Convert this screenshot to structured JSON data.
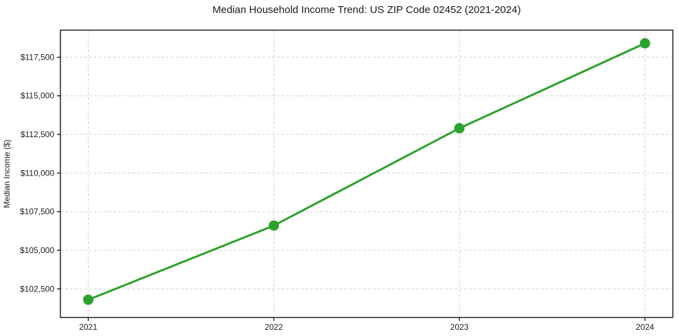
{
  "figure": {
    "background": "#ffffff"
  },
  "chart_data": {
    "type": "line",
    "title": "Median Household Income Trend: US ZIP Code 02452 (2021-2024)",
    "xlabel": "",
    "ylabel": "Median Income ($)",
    "categories": [
      "2021",
      "2022",
      "2023",
      "2024"
    ],
    "series": [
      {
        "values": [
          101800,
          106600,
          112900,
          118400
        ],
        "color": "#2ca02c",
        "marker": "circle",
        "line_width": 3,
        "marker_radius": 7.5
      }
    ],
    "yticks": [
      {
        "value": 102500,
        "label": "$102,500"
      },
      {
        "value": 105000,
        "label": "$105,000"
      },
      {
        "value": 107500,
        "label": "$107,500"
      },
      {
        "value": 110000,
        "label": "$110,000"
      },
      {
        "value": 112500,
        "label": "$112,500"
      },
      {
        "value": 115000,
        "label": "$115,000"
      },
      {
        "value": 117500,
        "label": "$117,500"
      }
    ],
    "ylim": [
      100650,
      119250
    ],
    "xlim": [
      -0.15,
      3.15
    ],
    "grid": true,
    "grid_style": "dashed",
    "legend": "none",
    "colors": {
      "line": "#2ca02c",
      "grid": "#d0d0d0",
      "axis": "#000000",
      "text": "#1a1a1a"
    }
  }
}
